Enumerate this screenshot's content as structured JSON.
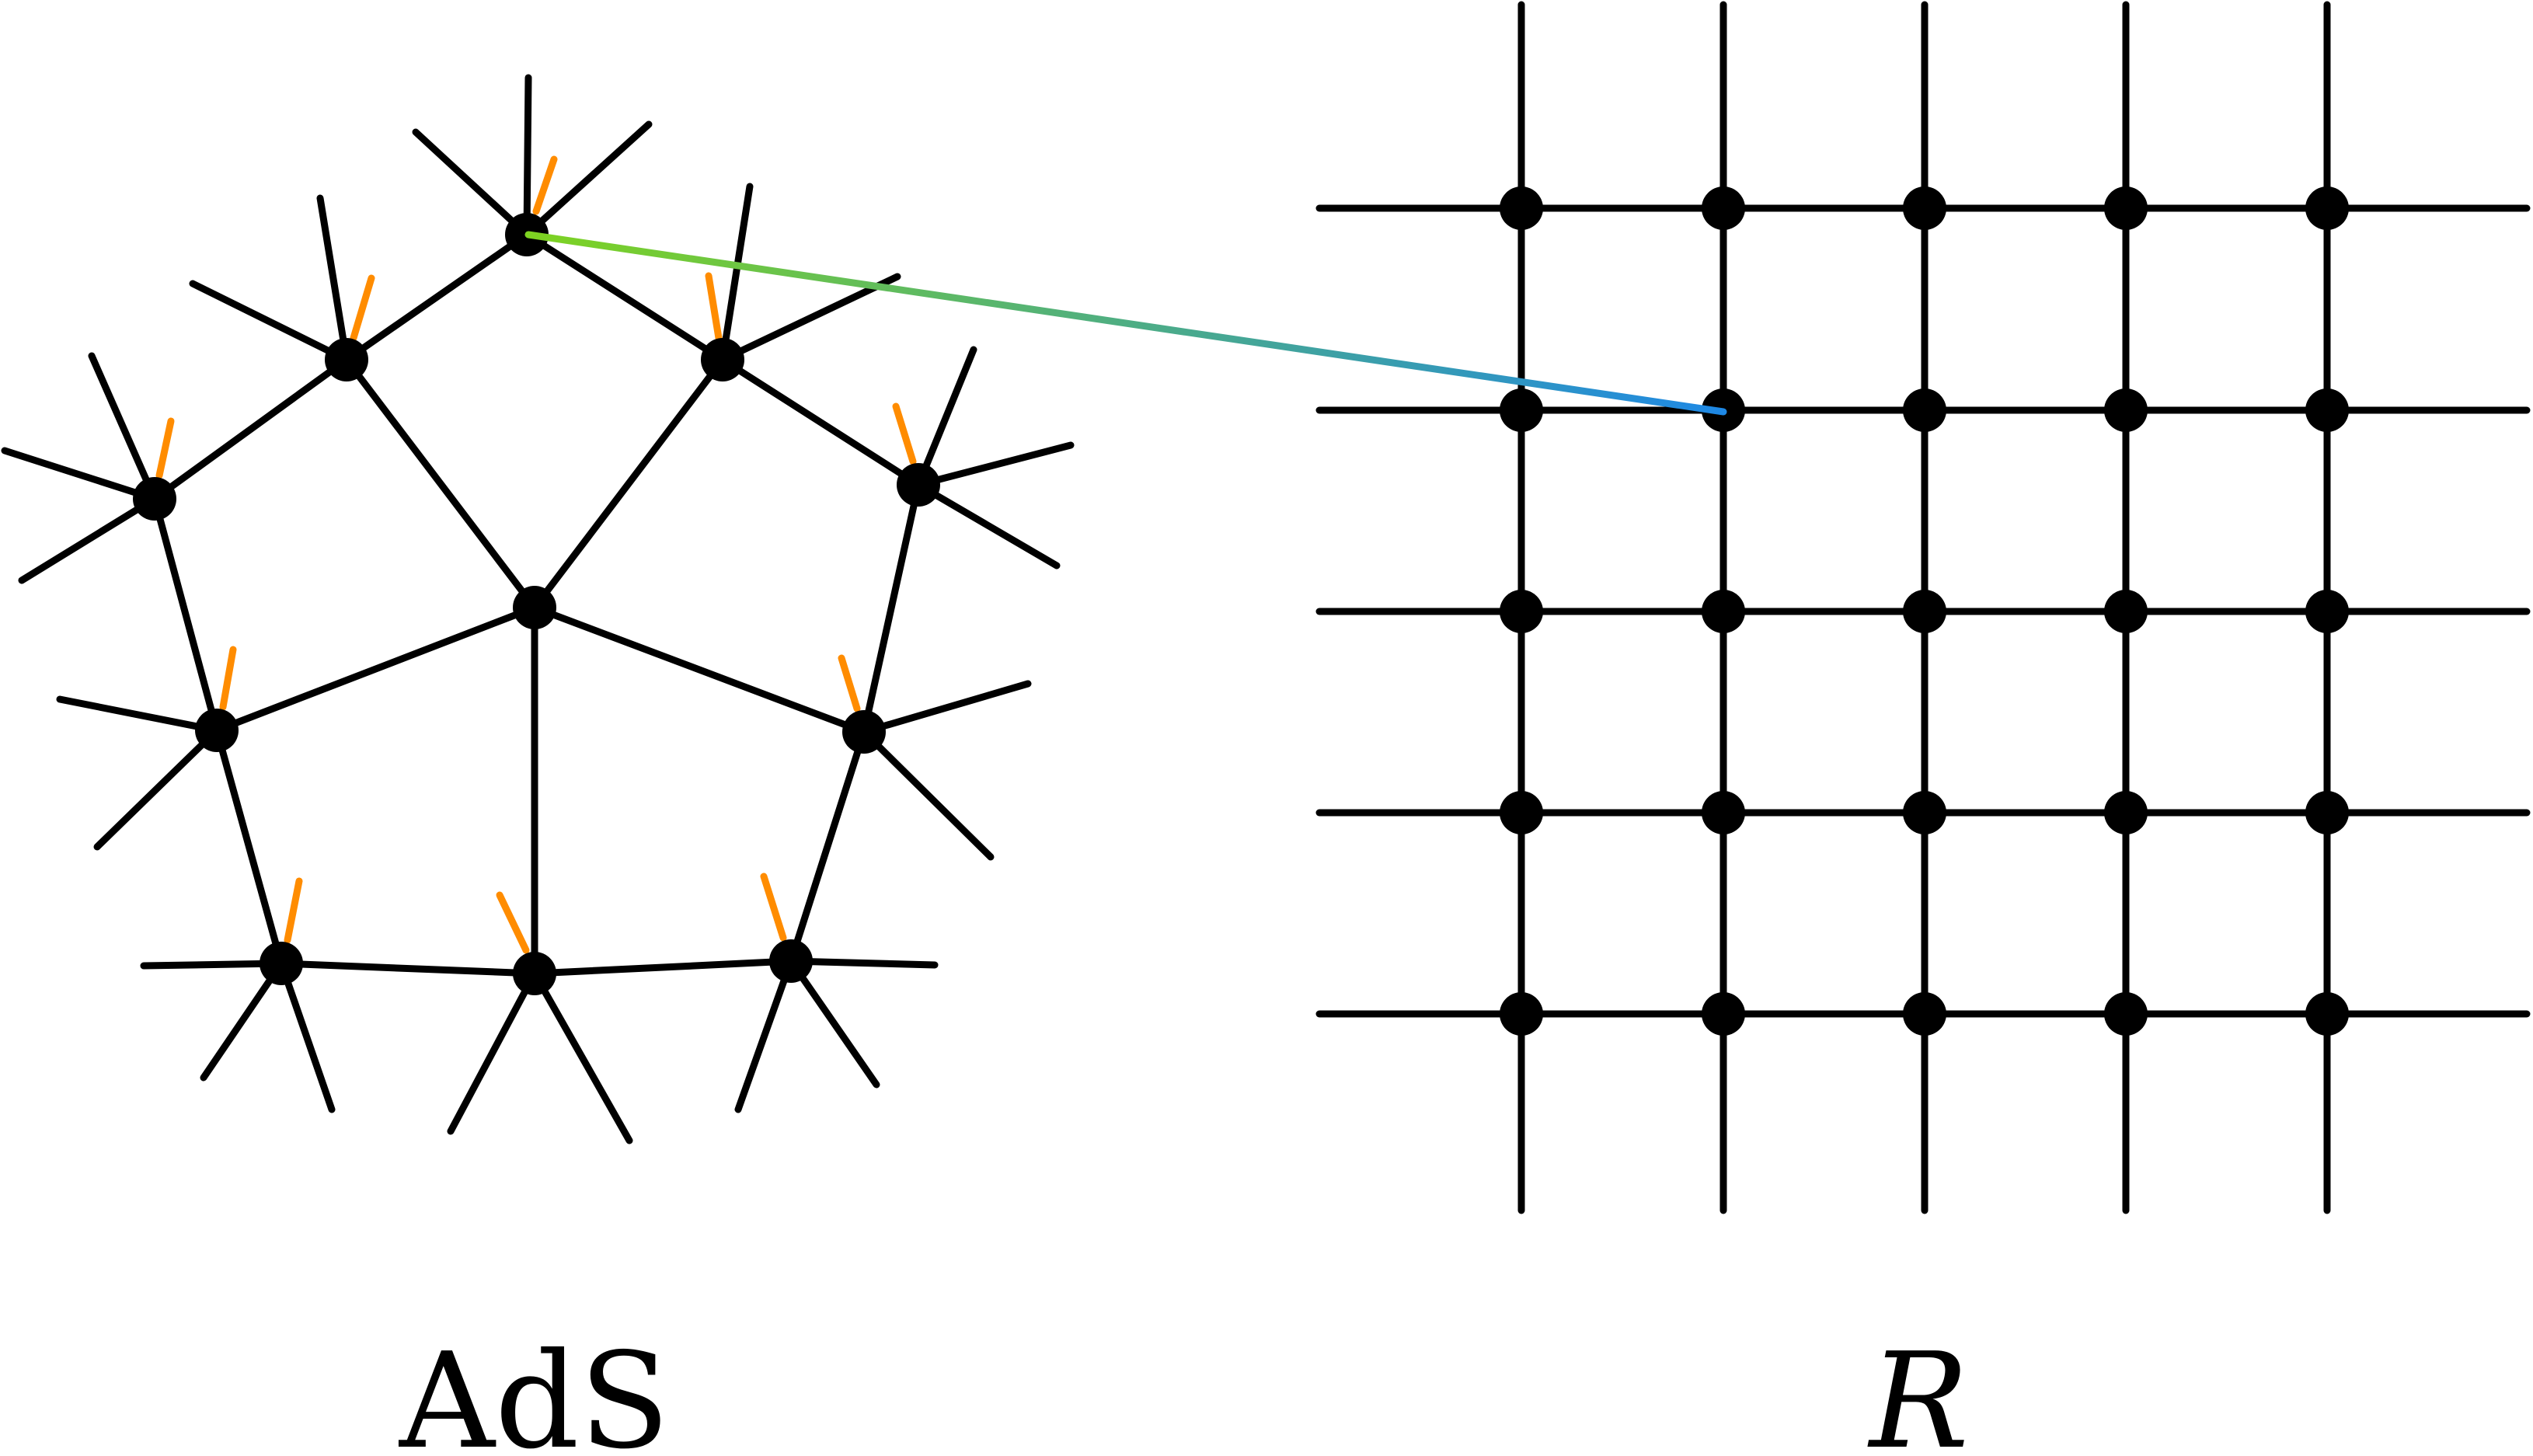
{
  "labels": {
    "left": "AdS",
    "right": "R"
  },
  "colors": {
    "edge": "#000000",
    "node": "#000000",
    "marker": "#ff8c00",
    "link_start": "#7ed321",
    "link_end": "#1e88e5"
  }
}
